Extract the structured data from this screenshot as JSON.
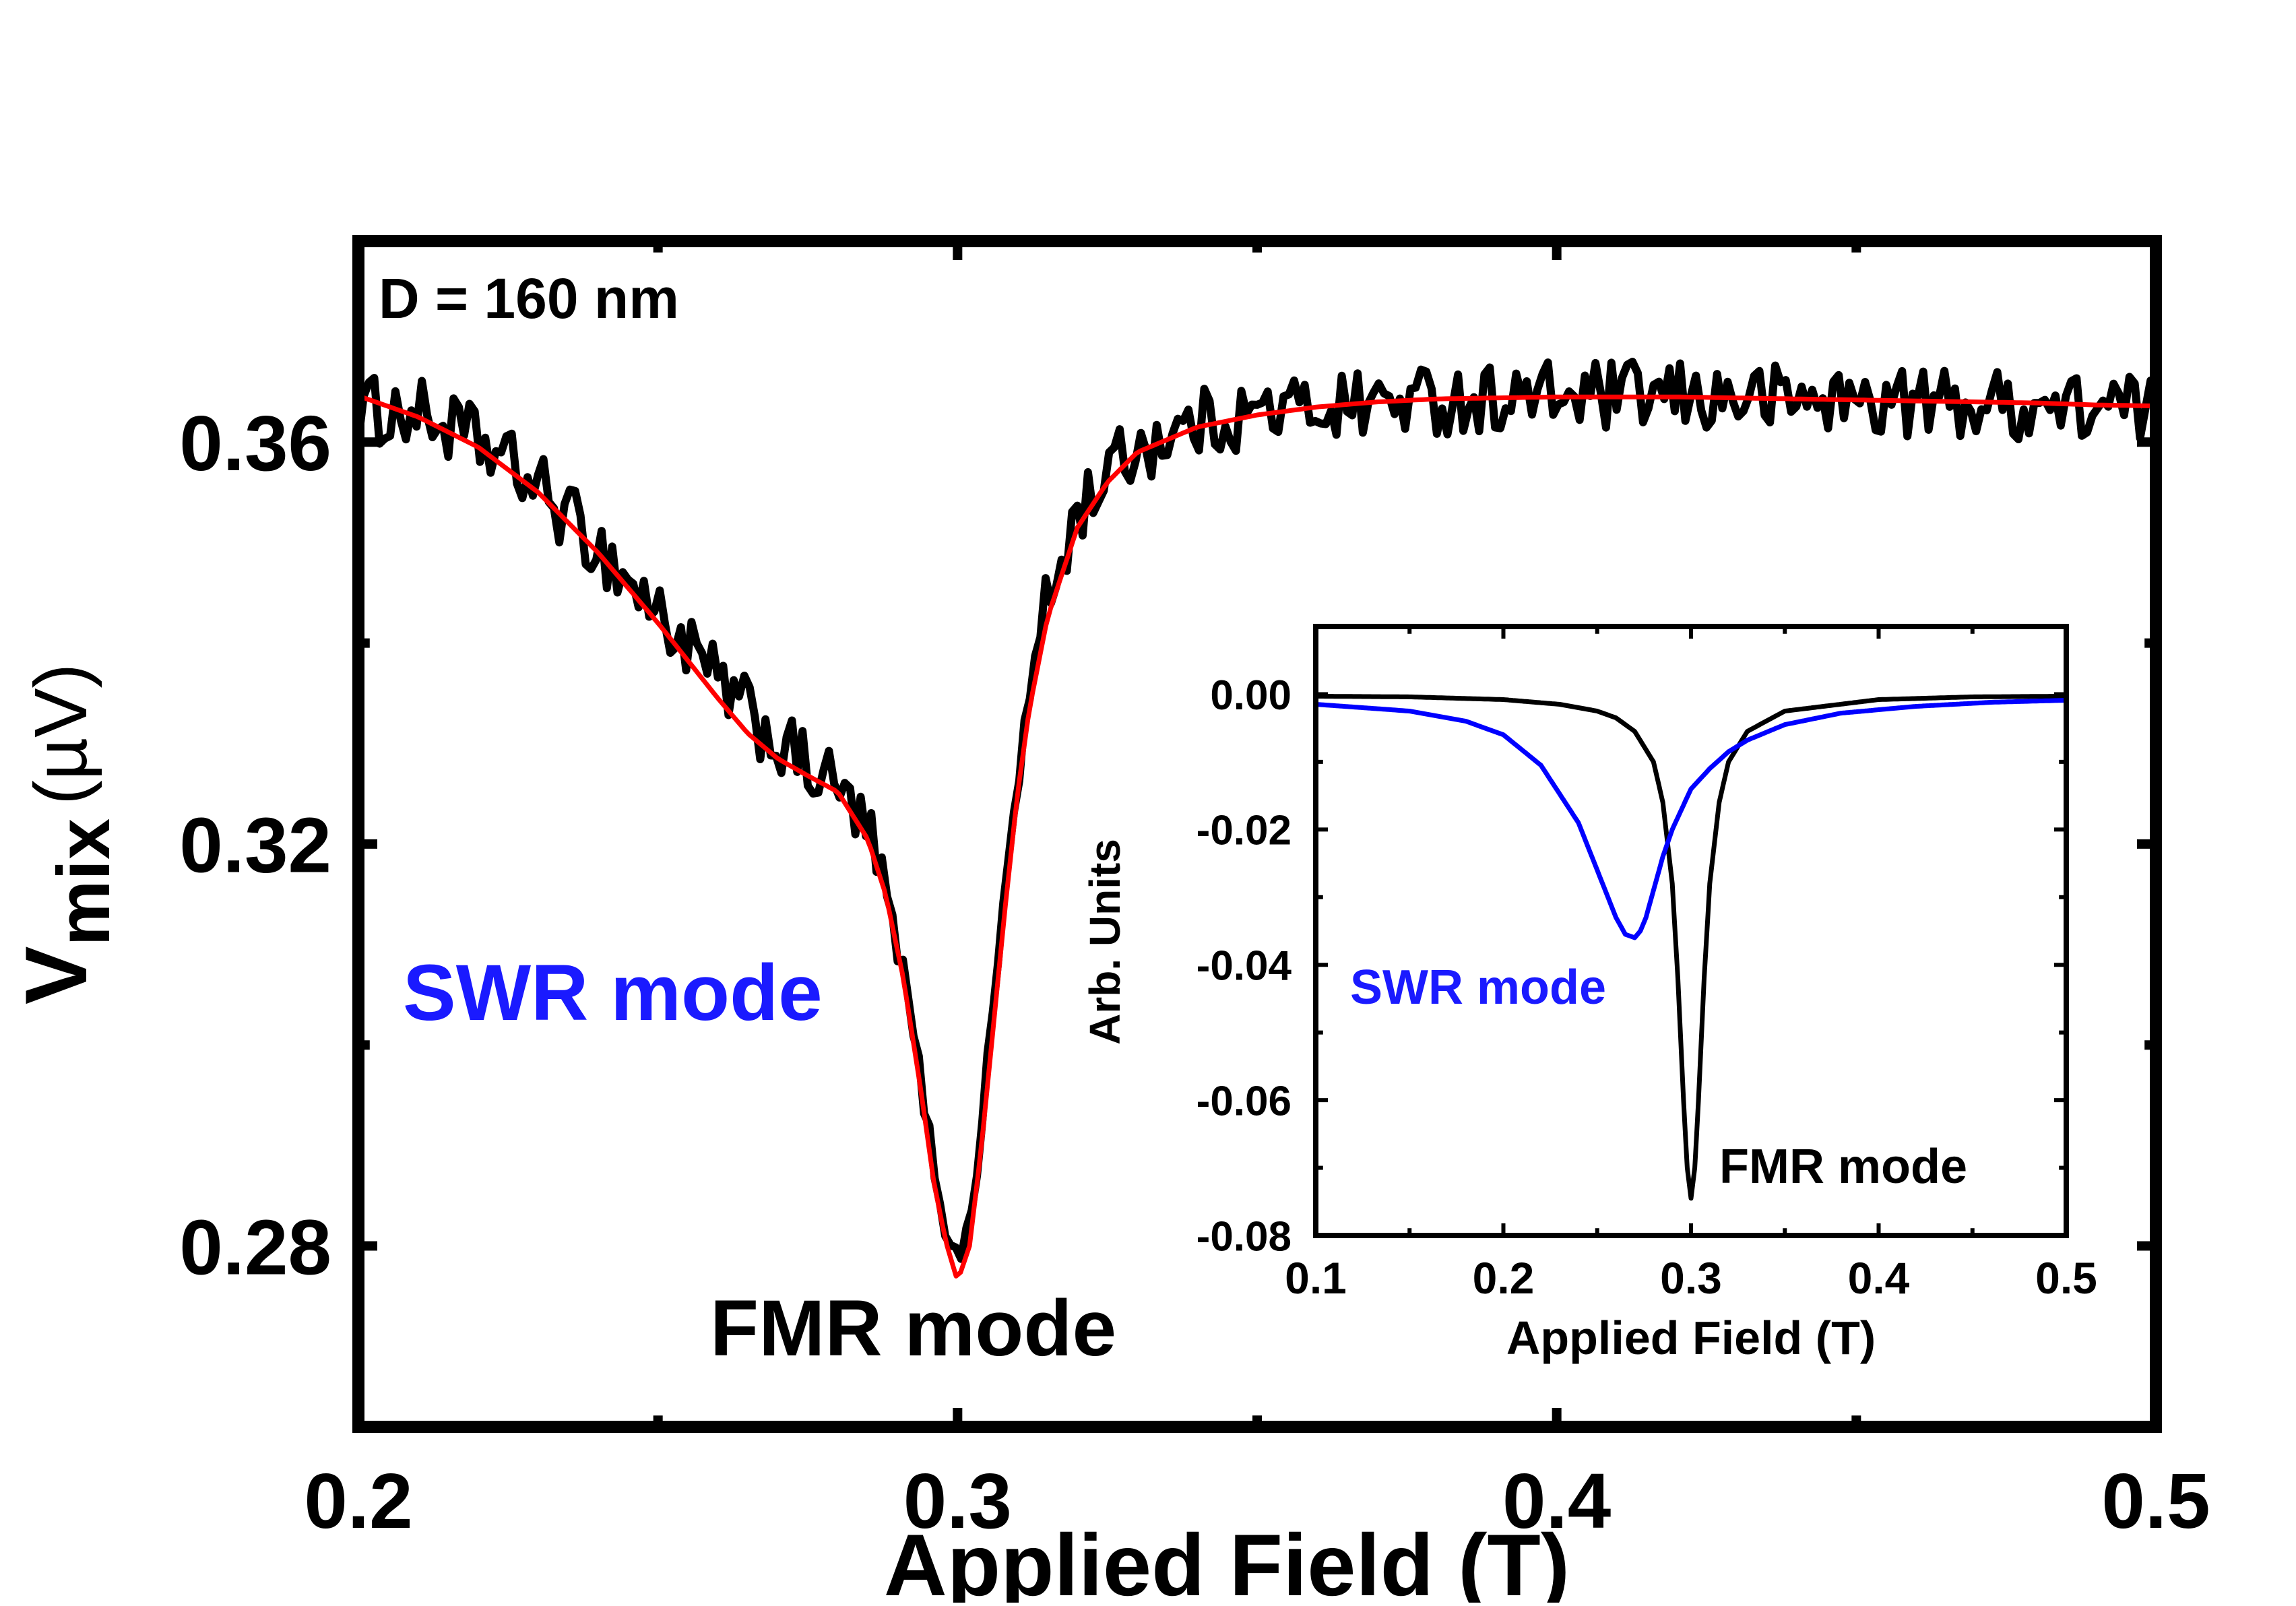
{
  "chart_data": [
    {
      "type": "line",
      "title": "",
      "xlabel": "Applied Field (T)",
      "ylabel_main": "V",
      "ylabel_sub": "mix",
      "ylabel_unit": "(µV)",
      "xlim": [
        0.2,
        0.5
      ],
      "ylim": [
        0.262,
        0.38
      ],
      "x_ticks": [
        0.2,
        0.3,
        0.4,
        0.5
      ],
      "x_tick_labels": [
        "0.2",
        "0.3",
        "0.4",
        "0.5"
      ],
      "y_ticks": [
        0.28,
        0.32,
        0.36
      ],
      "y_tick_labels": [
        "0.28",
        "0.32",
        "0.36"
      ],
      "annotations": {
        "sample": "D = 160 nm",
        "swr": "SWR mode",
        "fmr": "FMR mode"
      },
      "series": [
        {
          "color": "#000000",
          "x": [
            0.2,
            0.21,
            0.22,
            0.23,
            0.24,
            0.25,
            0.26,
            0.265,
            0.27,
            0.275,
            0.28,
            0.285,
            0.288,
            0.291,
            0.294,
            0.296,
            0.298,
            0.3,
            0.302,
            0.304,
            0.306,
            0.308,
            0.31,
            0.312,
            0.315,
            0.32,
            0.325,
            0.33,
            0.34,
            0.35,
            0.36,
            0.37,
            0.38,
            0.39,
            0.4,
            0.41,
            0.42,
            0.43,
            0.44,
            0.45,
            0.46,
            0.47,
            0.48,
            0.49,
            0.5
          ],
          "y": [
            0.3632,
            0.3628,
            0.36,
            0.3555,
            0.3495,
            0.343,
            0.336,
            0.333,
            0.33,
            0.3275,
            0.3255,
            0.321,
            0.315,
            0.307,
            0.296,
            0.288,
            0.282,
            0.2785,
            0.282,
            0.292,
            0.304,
            0.316,
            0.326,
            0.335,
            0.344,
            0.353,
            0.357,
            0.3595,
            0.3618,
            0.363,
            0.3636,
            0.364,
            0.3642,
            0.3644,
            0.3645,
            0.3645,
            0.3645,
            0.3644,
            0.3643,
            0.3642,
            0.364,
            0.3638,
            0.3636,
            0.3634,
            0.3632
          ],
          "noise_amplitude": 0.0035
        },
        {
          "color": "#ff0000",
          "x": [
            0.2,
            0.21,
            0.22,
            0.23,
            0.24,
            0.25,
            0.26,
            0.265,
            0.27,
            0.275,
            0.28,
            0.285,
            0.288,
            0.291,
            0.294,
            0.296,
            0.298,
            0.3,
            0.302,
            0.304,
            0.306,
            0.308,
            0.31,
            0.312,
            0.315,
            0.32,
            0.325,
            0.33,
            0.34,
            0.35,
            0.36,
            0.37,
            0.38,
            0.39,
            0.4,
            0.41,
            0.42,
            0.43,
            0.44,
            0.45,
            0.46,
            0.47,
            0.48,
            0.49,
            0.5
          ],
          "y": [
            0.3646,
            0.3625,
            0.3595,
            0.355,
            0.349,
            0.342,
            0.3345,
            0.331,
            0.3285,
            0.3268,
            0.3252,
            0.3205,
            0.315,
            0.3065,
            0.295,
            0.2865,
            0.2805,
            0.2765,
            0.28,
            0.29,
            0.302,
            0.314,
            0.325,
            0.3335,
            0.3425,
            0.3515,
            0.356,
            0.359,
            0.3615,
            0.3627,
            0.3635,
            0.364,
            0.3643,
            0.3644,
            0.3645,
            0.3645,
            0.3645,
            0.3644,
            0.3643,
            0.3642,
            0.3641,
            0.364,
            0.3639,
            0.3637,
            0.3636
          ]
        }
      ]
    },
    {
      "type": "line",
      "title": "",
      "xlabel": "Applied Field (T)",
      "ylabel": "Arb. Units",
      "xlim": [
        0.1,
        0.5
      ],
      "ylim": [
        -0.08,
        0.01
      ],
      "x_ticks": [
        0.1,
        0.2,
        0.3,
        0.4,
        0.5
      ],
      "x_tick_labels": [
        "0.1",
        "0.2",
        "0.3",
        "0.4",
        "0.5"
      ],
      "y_ticks": [
        0.0,
        -0.02,
        -0.04,
        -0.06,
        -0.08
      ],
      "y_tick_labels": [
        "0.00",
        "-0.02",
        "-0.04",
        "-0.06",
        "-0.08"
      ],
      "annotations": {
        "swr": "SWR mode",
        "fmr": "FMR mode"
      },
      "series": [
        {
          "color": "#000000",
          "x": [
            0.1,
            0.15,
            0.2,
            0.23,
            0.25,
            0.26,
            0.27,
            0.28,
            0.285,
            0.29,
            0.293,
            0.296,
            0.298,
            0.3,
            0.302,
            0.304,
            0.307,
            0.31,
            0.315,
            0.32,
            0.33,
            0.35,
            0.4,
            0.45,
            0.5
          ],
          "y": [
            -0.0003,
            -0.0004,
            -0.0008,
            -0.0015,
            -0.0025,
            -0.0035,
            -0.0055,
            -0.01,
            -0.016,
            -0.028,
            -0.042,
            -0.06,
            -0.07,
            -0.0745,
            -0.07,
            -0.06,
            -0.042,
            -0.028,
            -0.016,
            -0.01,
            -0.0055,
            -0.0025,
            -0.0008,
            -0.0004,
            -0.0003
          ]
        },
        {
          "color": "#0000ff",
          "x": [
            0.1,
            0.15,
            0.18,
            0.2,
            0.22,
            0.24,
            0.25,
            0.26,
            0.265,
            0.27,
            0.273,
            0.276,
            0.28,
            0.285,
            0.29,
            0.3,
            0.31,
            0.32,
            0.33,
            0.35,
            0.38,
            0.42,
            0.46,
            0.5
          ],
          "y": [
            -0.0015,
            -0.0025,
            -0.004,
            -0.006,
            -0.0105,
            -0.019,
            -0.026,
            -0.033,
            -0.0355,
            -0.036,
            -0.035,
            -0.033,
            -0.029,
            -0.024,
            -0.02,
            -0.014,
            -0.011,
            -0.0085,
            -0.0068,
            -0.0045,
            -0.0028,
            -0.0018,
            -0.0012,
            -0.0009
          ]
        }
      ]
    }
  ]
}
